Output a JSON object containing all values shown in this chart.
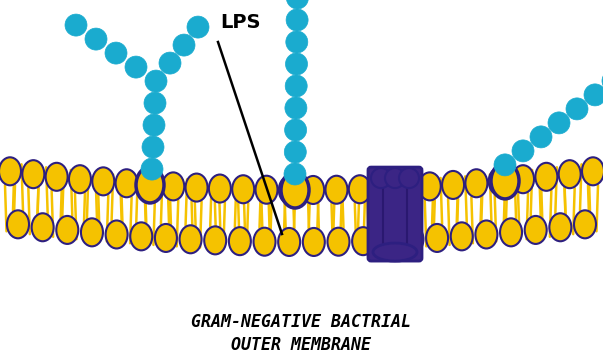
{
  "bg_color": "#ffffff",
  "cyan_color": "#1aabcf",
  "yellow_color": "#f5c200",
  "purple_color": "#3b2585",
  "outline_color": "#2d1f80",
  "dark_purple": "#2a1870",
  "title_line1": "GRAM-NEGATIVE BACTRIAL",
  "title_line2": "OUTER MEMBRANE",
  "lps_label": "LPS",
  "figw": 6.03,
  "figh": 3.6,
  "dpi": 100
}
